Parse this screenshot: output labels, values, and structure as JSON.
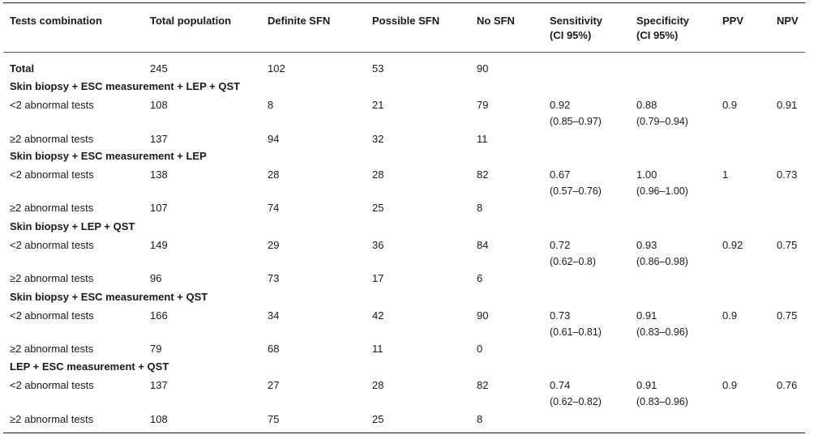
{
  "headers": {
    "tests": "Tests combination",
    "total": "Total population",
    "definite": "Definite SFN",
    "possible": "Possible SFN",
    "no": "No SFN",
    "sens_l1": "Sensitivity",
    "sens_l2": "(CI 95%)",
    "spec_l1": "Specificity",
    "spec_l2": "(CI 95%)",
    "ppv": "PPV",
    "npv": "NPV"
  },
  "total_row": {
    "label": "Total",
    "total": "245",
    "definite": "102",
    "possible": "53",
    "no": "90"
  },
  "groups": [
    {
      "title": "Skin biopsy + ESC measurement + LEP + QST",
      "lt": {
        "label": "<2 abnormal tests",
        "total": "108",
        "definite": "8",
        "possible": "21",
        "no": "79",
        "sens": "0.92",
        "sens_ci": "(0.85–0.97)",
        "spec": "0.88",
        "spec_ci": "(0.79–0.94)",
        "ppv": "0.9",
        "npv": "0.91"
      },
      "ge": {
        "label": "≥2 abnormal tests",
        "total": "137",
        "definite": "94",
        "possible": "32",
        "no": "11"
      }
    },
    {
      "title": "Skin biopsy + ESC measurement + LEP",
      "lt": {
        "label": "<2 abnormal tests",
        "total": "138",
        "definite": "28",
        "possible": "28",
        "no": "82",
        "sens": "0.67",
        "sens_ci": "(0.57–0.76)",
        "spec": "1.00",
        "spec_ci": "(0.96–1.00)",
        "ppv": "1",
        "npv": "0.73"
      },
      "ge": {
        "label": "≥2 abnormal tests",
        "total": "107",
        "definite": "74",
        "possible": "25",
        "no": "8"
      }
    },
    {
      "title": "Skin biopsy + LEP + QST",
      "lt": {
        "label": "<2 abnormal tests",
        "total": "149",
        "definite": "29",
        "possible": "36",
        "no": "84",
        "sens": "0.72",
        "sens_ci": "(0.62–0.8)",
        "spec": "0.93",
        "spec_ci": "(0.86–0.98)",
        "ppv": "0.92",
        "npv": "0.75"
      },
      "ge": {
        "label": "≥2 abnormal tests",
        "total": "96",
        "definite": "73",
        "possible": "17",
        "no": "6"
      }
    },
    {
      "title": "Skin biopsy + ESC measurement + QST",
      "lt": {
        "label": "<2 abnormal tests",
        "total": "166",
        "definite": "34",
        "possible": "42",
        "no": "90",
        "sens": "0.73",
        "sens_ci": "(0.61–0.81)",
        "spec": "0.91",
        "spec_ci": "(0.83–0.96)",
        "ppv": "0.9",
        "npv": "0.75"
      },
      "ge": {
        "label": "≥2 abnormal tests",
        "total": "79",
        "definite": "68",
        "possible": "11",
        "no": "0"
      }
    },
    {
      "title": "LEP + ESC measurement + QST",
      "lt": {
        "label": "<2 abnormal tests",
        "total": "137",
        "definite": "27",
        "possible": "28",
        "no": "82",
        "sens": "0.74",
        "sens_ci": "(0.62–0.82)",
        "spec": "0.91",
        "spec_ci": "(0.83–0.96)",
        "ppv": "0.9",
        "npv": "0.76"
      },
      "ge": {
        "label": "≥2 abnormal tests",
        "total": "108",
        "definite": "75",
        "possible": "25",
        "no": "8"
      }
    }
  ]
}
